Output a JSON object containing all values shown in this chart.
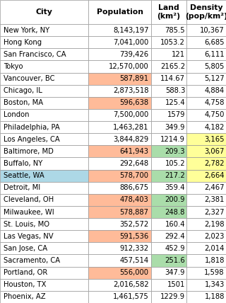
{
  "headers": [
    "City",
    "Population",
    "Land\n(km²)",
    "Density\n(pop/km²)"
  ],
  "rows": [
    [
      "New York, NY",
      "8,143,197",
      "785.5",
      "10,367"
    ],
    [
      "Hong Kong",
      "7,041,000",
      "1053.2",
      "6,685"
    ],
    [
      "San Francisco, CA",
      "739,426",
      "121",
      "6,111"
    ],
    [
      "Tokyo",
      "12,570,000",
      "2165.2",
      "5,805"
    ],
    [
      "Vancouver, BC",
      "587,891",
      "114.67",
      "5,127"
    ],
    [
      "Chicago, IL",
      "2,873,518",
      "588.3",
      "4,884"
    ],
    [
      "Boston, MA",
      "596,638",
      "125.4",
      "4,758"
    ],
    [
      "London",
      "7,500,000",
      "1579",
      "4,750"
    ],
    [
      "Philadelphia, PA",
      "1,463,281",
      "349.9",
      "4,182"
    ],
    [
      "Los Angeles, CA",
      "3,844,829",
      "1214.9",
      "3,165"
    ],
    [
      "Baltimore, MD",
      "641,943",
      "209.3",
      "3,067"
    ],
    [
      "Buffalo, NY",
      "292,648",
      "105.2",
      "2,782"
    ],
    [
      "Seattle, WA",
      "578,700",
      "217.2",
      "2,664"
    ],
    [
      "Detroit, MI",
      "886,675",
      "359.4",
      "2,467"
    ],
    [
      "Cleveland, OH",
      "478,403",
      "200.9",
      "2,381"
    ],
    [
      "Milwaukee, WI",
      "578,887",
      "248.8",
      "2,327"
    ],
    [
      "St. Louis, MO",
      "352,572",
      "160.4",
      "2,198"
    ],
    [
      "Las Vegas, NV",
      "591,536",
      "292.4",
      "2,023"
    ],
    [
      "San Jose, CA",
      "912,332",
      "452.9",
      "2,014"
    ],
    [
      "Sacramento, CA",
      "457,514",
      "251.6",
      "1,818"
    ],
    [
      "Portland, OR",
      "556,000",
      "347.9",
      "1,598"
    ],
    [
      "Houston, TX",
      "2,016,582",
      "1501",
      "1,343"
    ],
    [
      "Phoenix, AZ",
      "1,461,575",
      "1229.9",
      "1,188"
    ]
  ],
  "row_colors": [
    [
      "#ffffff",
      "#ffffff",
      "#ffffff",
      "#ffffff"
    ],
    [
      "#ffffff",
      "#ffffff",
      "#ffffff",
      "#ffffff"
    ],
    [
      "#ffffff",
      "#ffffff",
      "#ffffff",
      "#ffffff"
    ],
    [
      "#ffffff",
      "#ffffff",
      "#ffffff",
      "#ffffff"
    ],
    [
      "#ffffff",
      "#FFBB99",
      "#ffffff",
      "#ffffff"
    ],
    [
      "#ffffff",
      "#ffffff",
      "#ffffff",
      "#ffffff"
    ],
    [
      "#ffffff",
      "#FFBB99",
      "#ffffff",
      "#ffffff"
    ],
    [
      "#ffffff",
      "#ffffff",
      "#ffffff",
      "#ffffff"
    ],
    [
      "#ffffff",
      "#ffffff",
      "#ffffff",
      "#ffffff"
    ],
    [
      "#ffffff",
      "#ffffff",
      "#ffffff",
      "#FFFF99"
    ],
    [
      "#ffffff",
      "#FFBB99",
      "#AADDAA",
      "#FFFF99"
    ],
    [
      "#ffffff",
      "#ffffff",
      "#ffffff",
      "#FFFF99"
    ],
    [
      "#ADD8E6",
      "#FFBB99",
      "#AADDAA",
      "#FFFF99"
    ],
    [
      "#ffffff",
      "#ffffff",
      "#ffffff",
      "#ffffff"
    ],
    [
      "#ffffff",
      "#FFBB99",
      "#AADDAA",
      "#ffffff"
    ],
    [
      "#ffffff",
      "#FFBB99",
      "#AADDAA",
      "#ffffff"
    ],
    [
      "#ffffff",
      "#ffffff",
      "#ffffff",
      "#ffffff"
    ],
    [
      "#ffffff",
      "#FFBB99",
      "#ffffff",
      "#ffffff"
    ],
    [
      "#ffffff",
      "#ffffff",
      "#ffffff",
      "#ffffff"
    ],
    [
      "#ffffff",
      "#ffffff",
      "#AADDAA",
      "#ffffff"
    ],
    [
      "#ffffff",
      "#FFBB99",
      "#ffffff",
      "#ffffff"
    ],
    [
      "#ffffff",
      "#ffffff",
      "#ffffff",
      "#ffffff"
    ],
    [
      "#ffffff",
      "#ffffff",
      "#ffffff",
      "#ffffff"
    ]
  ],
  "grid_color": "#999999",
  "font_size": 7.2,
  "header_font_size": 7.8,
  "fig_width": 3.2,
  "fig_height": 4.28,
  "dpi": 100
}
